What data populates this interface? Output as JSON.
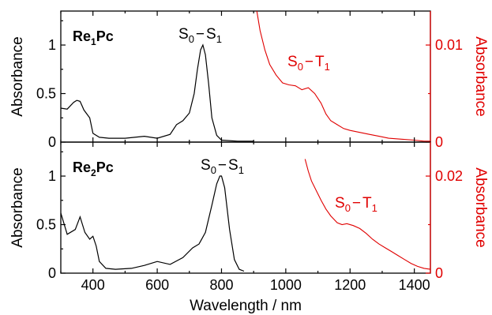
{
  "chart_data": [
    {
      "type": "line",
      "sample_label": {
        "main": "Re",
        "sub": "1",
        "suffix": "Pc"
      },
      "ylabel": "Absorbance",
      "y2label": "Absorbance",
      "xlim": [
        300,
        1450
      ],
      "ylim": [
        0,
        1.35
      ],
      "y2lim": [
        0,
        0.0135
      ],
      "yticks": [
        0,
        0.5,
        1
      ],
      "yticks_labels": [
        "0",
        "0.5",
        "1"
      ],
      "y2ticks": [
        0,
        0.01
      ],
      "y2ticks_labels": [
        "0",
        "0.01"
      ],
      "annotations": [
        {
          "text": "S",
          "sub1": "0",
          "dash": "−",
          "s2": "S",
          "sub2": "1"
        },
        {
          "text": "S",
          "sub1": "0",
          "dash": "−",
          "s2": "T",
          "sub2": "1"
        }
      ],
      "series": [
        {
          "color": "#000000",
          "x": [
            300,
            320,
            340,
            350,
            360,
            372,
            390,
            400,
            420,
            450,
            500,
            560,
            600,
            640,
            660,
            670,
            680,
            700,
            715,
            725,
            735,
            742,
            750,
            760,
            770,
            785,
            800,
            850,
            900
          ],
          "y": [
            0.35,
            0.34,
            0.41,
            0.43,
            0.42,
            0.33,
            0.25,
            0.09,
            0.05,
            0.04,
            0.04,
            0.06,
            0.04,
            0.08,
            0.18,
            0.2,
            0.22,
            0.3,
            0.5,
            0.75,
            0.95,
            1.0,
            0.9,
            0.6,
            0.25,
            0.07,
            0.02,
            0.01,
            0.01
          ]
        },
        {
          "color": "#e00000",
          "x": [
            910,
            920,
            935,
            950,
            970,
            990,
            1010,
            1030,
            1050,
            1070,
            1090,
            1110,
            1125,
            1140,
            1160,
            1180,
            1200,
            1230,
            1260,
            1290,
            1320,
            1360,
            1400,
            1430,
            1450
          ],
          "y": [
            0.0135,
            0.0115,
            0.0095,
            0.008,
            0.0069,
            0.0061,
            0.0059,
            0.0058,
            0.0054,
            0.0056,
            0.005,
            0.004,
            0.0029,
            0.0022,
            0.0018,
            0.0014,
            0.0012,
            0.001,
            0.0008,
            0.0006,
            0.0004,
            0.0003,
            0.0002,
            0.0001,
            0.0001
          ]
        }
      ]
    },
    {
      "type": "line",
      "sample_label": {
        "main": "Re",
        "sub": "2",
        "suffix": "Pc"
      },
      "ylabel": "Absorbance",
      "y2label": "Absorbance",
      "xlabel": "Wavelength / nm",
      "xlim": [
        300,
        1450
      ],
      "ylim": [
        0,
        1.35
      ],
      "y2lim": [
        0,
        0.027
      ],
      "xticks": [
        400,
        600,
        800,
        1000,
        1200,
        1400
      ],
      "xticks_labels": [
        "400",
        "600",
        "800",
        "1000",
        "1200",
        "1400"
      ],
      "yticks": [
        0,
        0.5,
        1
      ],
      "yticks_labels": [
        "0",
        "0.5",
        "1"
      ],
      "y2ticks": [
        0,
        0.02
      ],
      "y2ticks_labels": [
        "0",
        "0.02"
      ],
      "annotations": [
        {
          "text": "S",
          "sub1": "0",
          "dash": "−",
          "s2": "S",
          "sub2": "1"
        },
        {
          "text": "S",
          "sub1": "0",
          "dash": "−",
          "s2": "T",
          "sub2": "1"
        }
      ],
      "series": [
        {
          "color": "#000000",
          "x": [
            300,
            320,
            345,
            360,
            375,
            390,
            400,
            410,
            420,
            440,
            470,
            520,
            560,
            600,
            640,
            680,
            710,
            730,
            750,
            770,
            785,
            795,
            800,
            810,
            825,
            840,
            855,
            870
          ],
          "y": [
            0.62,
            0.4,
            0.45,
            0.58,
            0.42,
            0.35,
            0.38,
            0.28,
            0.12,
            0.05,
            0.04,
            0.05,
            0.08,
            0.12,
            0.09,
            0.16,
            0.26,
            0.3,
            0.42,
            0.7,
            0.92,
            1.0,
            1.0,
            0.88,
            0.45,
            0.14,
            0.04,
            0.02
          ]
        },
        {
          "color": "#e00000",
          "x": [
            1060,
            1070,
            1080,
            1095,
            1110,
            1125,
            1140,
            1160,
            1175,
            1190,
            1210,
            1230,
            1250,
            1270,
            1290,
            1310,
            1330,
            1350,
            1370,
            1390,
            1410,
            1430,
            1450
          ],
          "y": [
            0.0235,
            0.021,
            0.019,
            0.017,
            0.015,
            0.0132,
            0.0118,
            0.0104,
            0.01,
            0.0102,
            0.0098,
            0.0092,
            0.0082,
            0.007,
            0.006,
            0.0052,
            0.0044,
            0.0036,
            0.0028,
            0.002,
            0.0014,
            0.001,
            0.0008
          ]
        }
      ]
    }
  ]
}
